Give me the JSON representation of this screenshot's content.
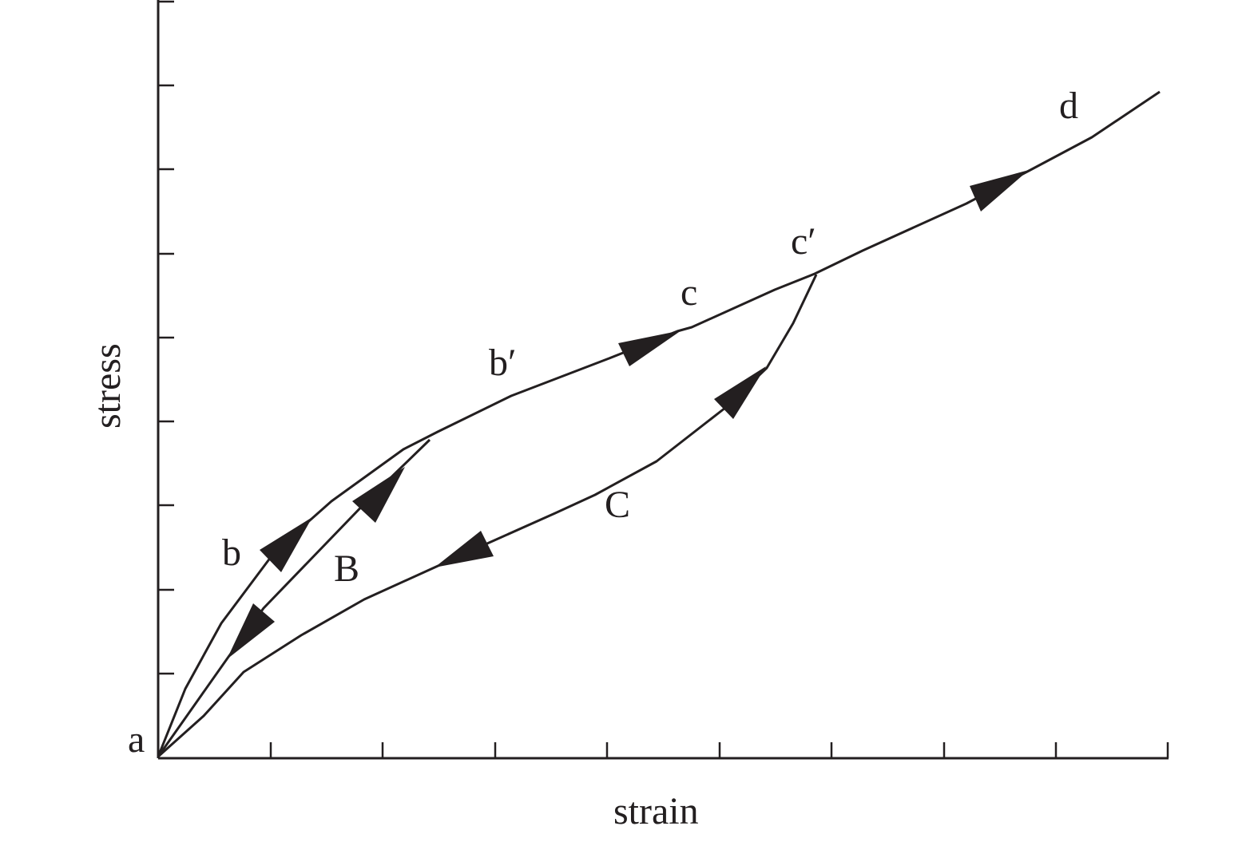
{
  "diagram": {
    "axes": {
      "x_label": "strain",
      "y_label": "stress",
      "x_ticks": 9,
      "y_ticks": 9
    },
    "points": {
      "a": "a",
      "b": "b",
      "b_prime": "b′",
      "c": "c",
      "c_prime": "c′",
      "d": "d"
    },
    "curves": {
      "B": "B",
      "C": "C"
    },
    "line_color": "#231f20"
  }
}
